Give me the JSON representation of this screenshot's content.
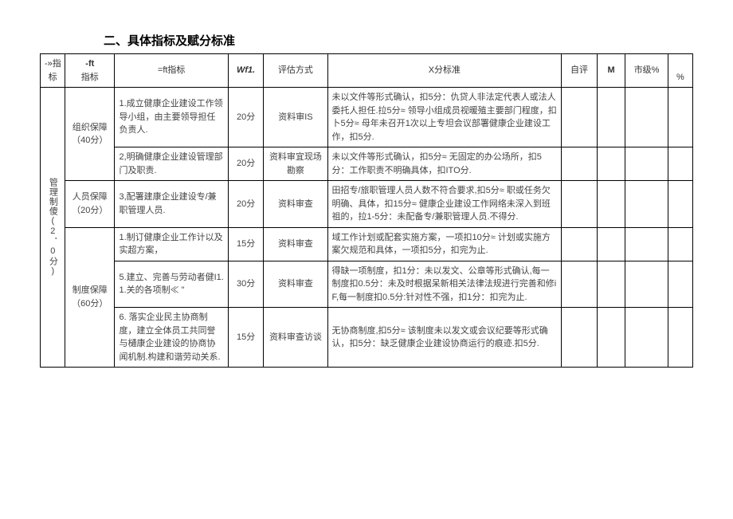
{
  "title": "二、具体指标及赋分标准",
  "headers": {
    "h1": "-»指标",
    "h2a": "-ft",
    "h2b": "指标",
    "h3": "=ft指标",
    "h4": "Wf1.",
    "h5": "评估方式",
    "h6": "X分标准",
    "h7": "自评",
    "h8": "M",
    "h9": "市级%",
    "h10": "%"
  },
  "level1": {
    "label": "管理制傻(2．0分)"
  },
  "groups": [
    {
      "label": "组织保障（40分）",
      "rows": [
        {
          "c3": "1.成立健康企业建设工作领导小组，由主要领导担任负责人.",
          "c4": "20分",
          "c5": "资料审IS",
          "c6": "未以文件等形式确认，扣5分：仇贷人非法定代表人或法人委托人担任.拉5分≈ 领导小组成员视暖殖主要部门程度，扣卜5分≈ 母年未召开1次以上专坦会议部署健康企业建设工作，扣5分."
        },
        {
          "c3": "2,明确健康企业建设管理部门及职责.",
          "c4": "20分",
          "c5": "资料审宜现场勘察",
          "c6": "未以文件等形式确认，扣5分≈ 无固定的办公场所，扣5分：工作职责不明确具体，扣ITO分."
        }
      ]
    },
    {
      "label": "人员保障（20分）",
      "rows": [
        {
          "c3": "3,配署建康企业建设专/兼职管理人员.",
          "c4": "20分",
          "c5": "资料审查",
          "c6": "田招专/旅职管理人员人数不符合要求,扣5分≈ 职或任务欠明确、具体，扣15分≈ 健康企业建设工作网络未深入到班祖的，拉1-5分：未配备专/兼职管理人员.不得分."
        }
      ]
    },
    {
      "label": "制度保障（60分）",
      "rows": [
        {
          "c3": "1.制订健康企业工作计以及实超方案，",
          "c4": "15分",
          "c5": "资料审查",
          "c6": "域工作计划或配套实施方案，一项扣10分≈ 计划或实施方案欠规范和具体，一项扣5分，扣完为止."
        },
        {
          "c3": "5.建立、完善与劳动者健I1.1.关的各项制≪ \"",
          "c4": "30分",
          "c5": "资料审查",
          "c6": "得缺一项制度，扣1分：未以发文、公章等形式确认,每一制度扣0.5分：未及时根据呆新相关法律法规进行完善和修iF,每一制度扣0.5分:针对性不强，扣1分：扣完为止."
        },
        {
          "c3": "6. 落实企业民主协商制度，建立全体员工共同誉与樋康企业建设的协商协闻机制.构建和谐劳动关系.",
          "c4": "15分",
          "c5": "资料审查访谈",
          "c6": "无协商制度,扣5分≈ 该制度未以发文或会议纪要等形式确认，扣5分：缺乏健康企业建设协商运行的痕迹.扣5分."
        }
      ]
    }
  ]
}
